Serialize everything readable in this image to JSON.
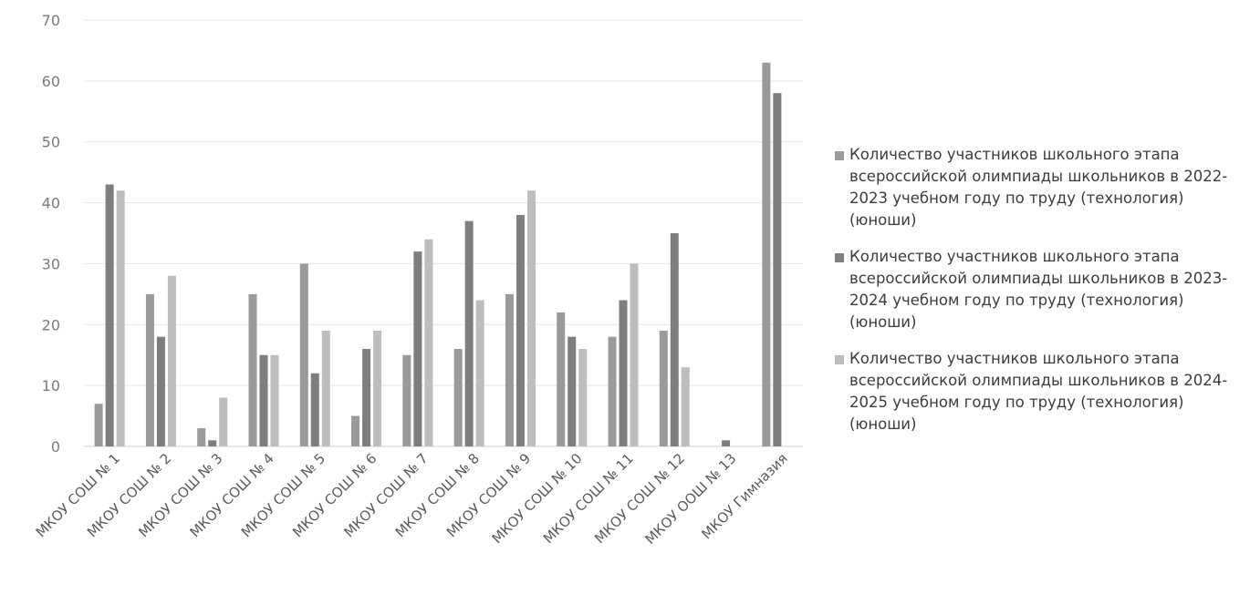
{
  "chart_data": {
    "type": "bar",
    "title": "",
    "xlabel": "",
    "ylabel": "",
    "ylim": [
      0,
      70
    ],
    "yticks": [
      0,
      10,
      20,
      30,
      40,
      50,
      60,
      70
    ],
    "grid": true,
    "legend_position": "right",
    "categories": [
      "МКОУ СОШ № 1",
      "МКОУ СОШ № 2",
      "МКОУ СОШ № 3",
      "МКОУ СОШ № 4",
      "МКОУ СОШ № 5",
      "МКОУ СОШ № 6",
      "МКОУ СОШ № 7",
      "МКОУ СОШ № 8",
      "МКОУ СОШ № 9",
      "МКОУ СОШ № 10",
      "МКОУ СОШ № 11",
      "МКОУ СОШ № 12",
      "МКОУ ООШ № 13",
      "МКОУ Гимназия"
    ],
    "series": [
      {
        "name": "Количество участников школьного этапа всероссийской олимпиады школьников в 2022-2023 учебном году по труду (технология) (юноши)",
        "color": "#9a9a9a",
        "values": [
          7,
          25,
          3,
          25,
          30,
          5,
          15,
          16,
          25,
          22,
          18,
          19,
          0,
          63
        ]
      },
      {
        "name": "Количество участников школьного этапа всероссийской олимпиады школьников в 2023-2024 учебном году по труду (технология) (юноши)",
        "color": "#7e7e7e",
        "values": [
          43,
          18,
          1,
          15,
          12,
          16,
          32,
          37,
          38,
          18,
          24,
          35,
          1,
          58
        ]
      },
      {
        "name": "Количество участников школьного этапа всероссийской олимпиады школьников в 2024-2025 учебном году по труду (технология) (юноши)",
        "color": "#bdbdbd",
        "values": [
          42,
          28,
          8,
          15,
          19,
          19,
          34,
          24,
          42,
          16,
          30,
          13,
          0,
          0
        ]
      }
    ]
  }
}
